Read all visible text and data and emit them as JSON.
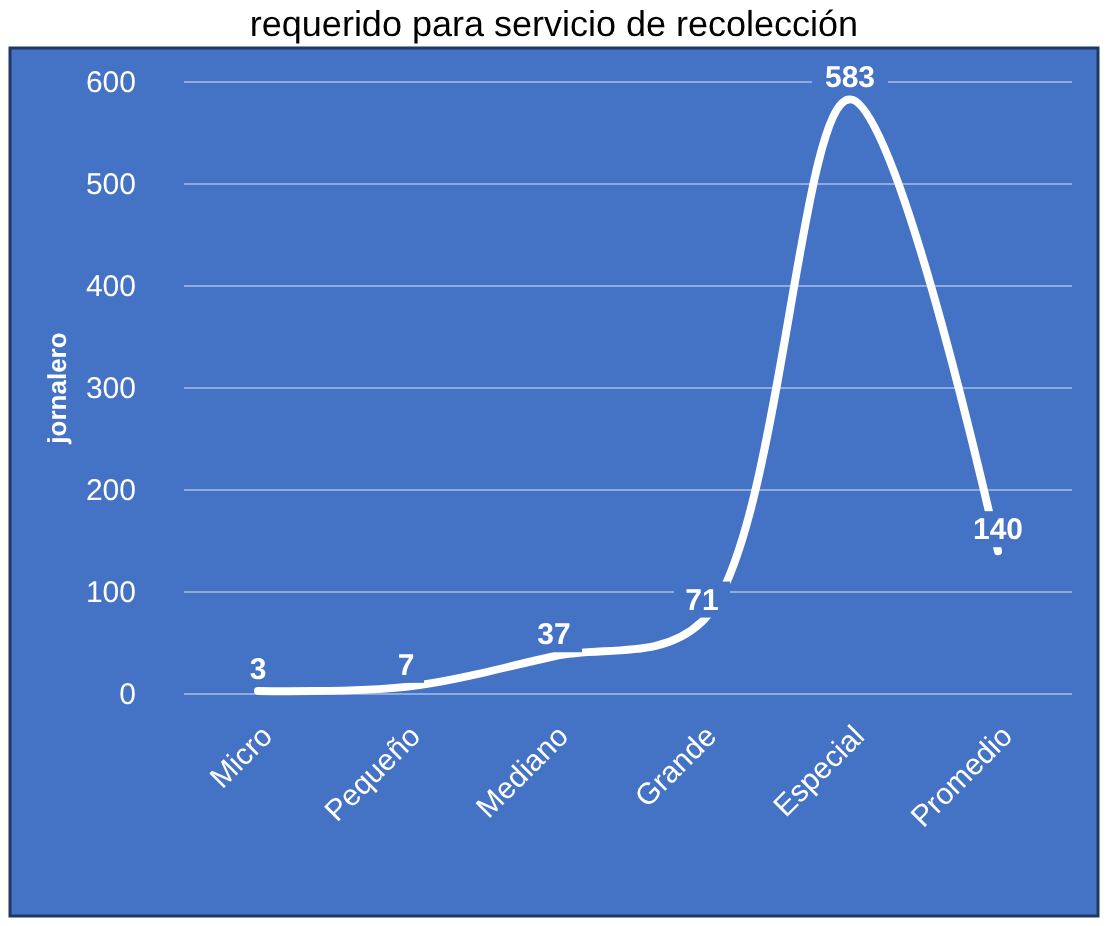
{
  "chart_data": {
    "type": "line",
    "title": "requerido para servicio de recolección",
    "ylabel": "jornalero",
    "categories": [
      "Micro",
      "Pequeño",
      "Mediano",
      "Grande",
      "Especial",
      "Promedio"
    ],
    "series": [
      {
        "color": "#ffffff",
        "values": [
          3,
          7,
          37,
          71,
          583,
          140
        ]
      }
    ],
    "ylim": [
      0,
      600
    ],
    "yticks": [
      0,
      100,
      200,
      300,
      400,
      500,
      600
    ],
    "grid": "y",
    "data_labels": true,
    "marker": "none",
    "line_style": "solid"
  }
}
